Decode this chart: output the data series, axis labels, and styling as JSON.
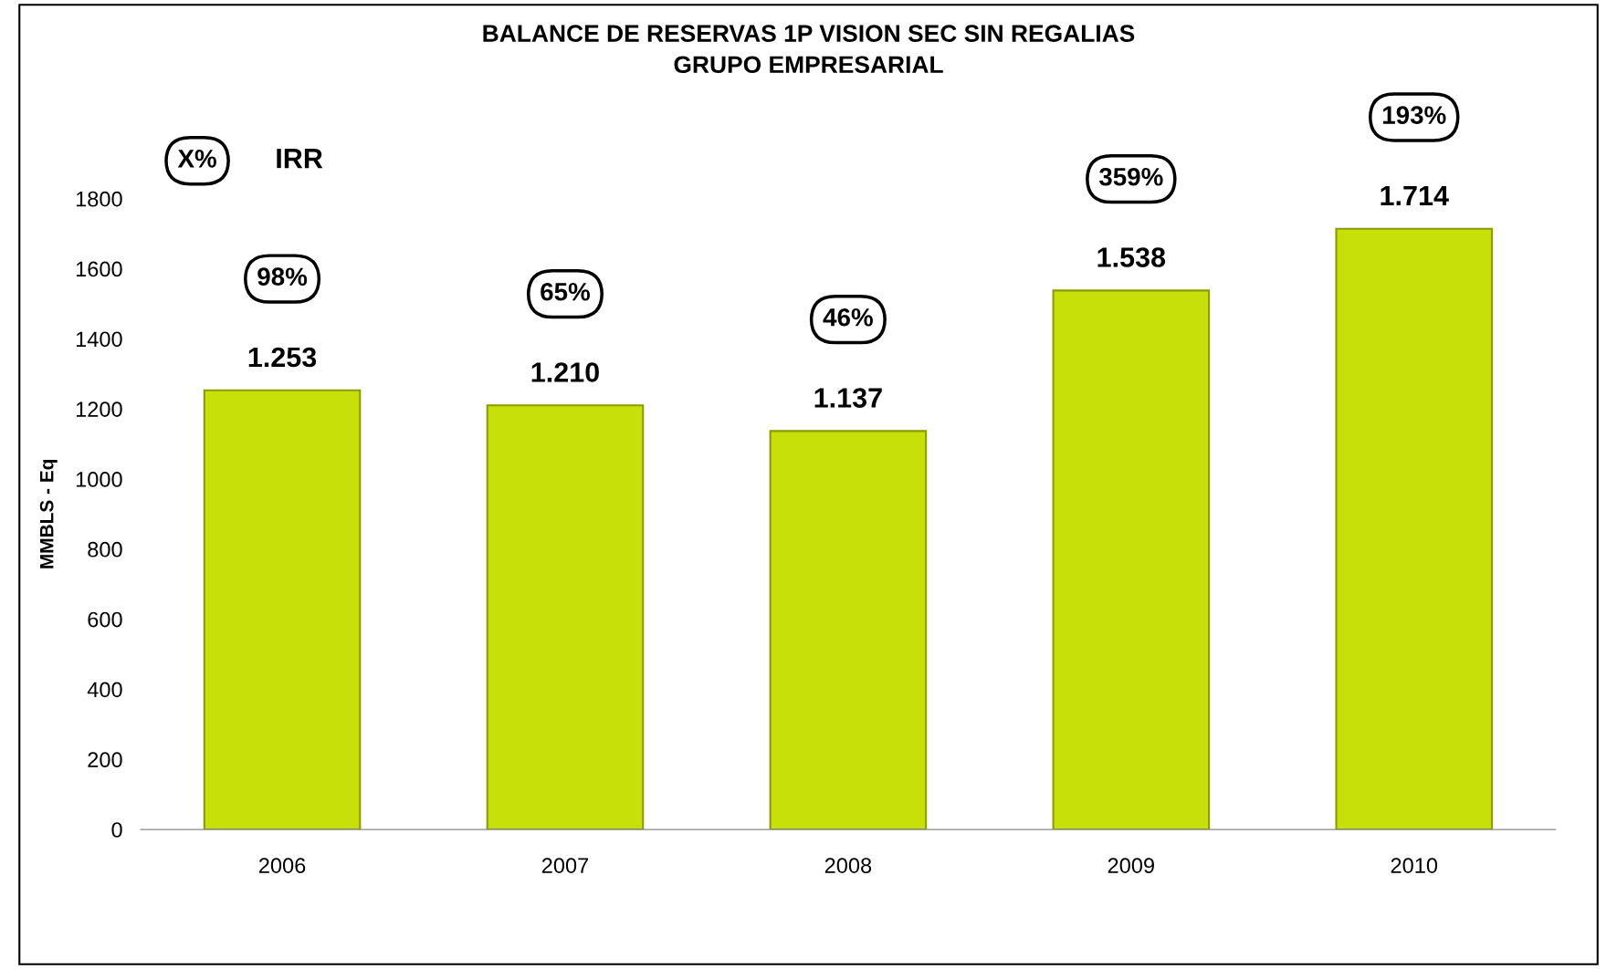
{
  "chart_data": {
    "type": "bar",
    "title": "BALANCE DE RESERVAS 1P VISION SEC SIN REGALIAS\nGRUPO EMPRESARIAL",
    "ylabel": "MMBLS - Eq",
    "categories": [
      "2006",
      "2007",
      "2008",
      "2009",
      "2010"
    ],
    "values": [
      1253,
      1210,
      1137,
      1538,
      1714
    ],
    "value_labels": [
      "1.253",
      "1.210",
      "1.137",
      "1.538",
      "1.714"
    ],
    "color": "#c8e00a",
    "ylim": [
      0,
      1800
    ],
    "yticks": [
      0,
      200,
      400,
      600,
      800,
      1000,
      1200,
      1400,
      1600,
      1800
    ],
    "grid": false,
    "legend": false,
    "annotations": [
      "X%",
      "IRR",
      "98%",
      "65%",
      "46%",
      "359%",
      "193%"
    ]
  }
}
